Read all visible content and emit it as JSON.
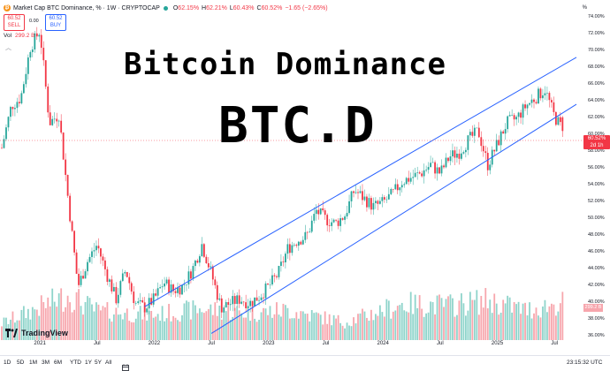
{
  "header": {
    "symbol_title": "Market Cap BTC Dominance, % · 1W · CRYPTOCAP",
    "logo_glyph": "₿",
    "ohlc": [
      {
        "k": "O",
        "v": "62.15%"
      },
      {
        "k": "H",
        "v": "62.21%"
      },
      {
        "k": "L",
        "v": "60.43%"
      },
      {
        "k": "C",
        "v": "60.52%"
      },
      {
        "k": "",
        "v": "−1.65 (−2.65%)"
      }
    ],
    "sell_price": "60.52",
    "sell_label": "SELL",
    "buy_price": "60.52",
    "buy_label": "BUY",
    "spread": "0.00",
    "volume_label": "Vol",
    "volume_value": "299.2 B",
    "collapse_glyph": "︿"
  },
  "overlay": {
    "title_line1": "Bitcoin Dominance",
    "title_line2": "BTC.D"
  },
  "price_axis": {
    "unit_label": "%",
    "ticks": [
      "74.00%",
      "72.00%",
      "70.00%",
      "68.00%",
      "66.00%",
      "64.00%",
      "62.00%",
      "60.00%",
      "58.00%",
      "56.00%",
      "54.00%",
      "52.00%",
      "50.00%",
      "48.00%",
      "46.00%",
      "44.00%",
      "42.00%",
      "40.00%",
      "38.00%",
      "36.00%"
    ],
    "current_price": "60.52%",
    "countdown": "2d 1h",
    "volume_tag": "299.2 B"
  },
  "time_axis": {
    "labels": [
      "2021",
      "Jul",
      "2022",
      "Jul",
      "2023",
      "Jul",
      "2024",
      "Jul",
      "2025",
      "Jul"
    ]
  },
  "branding": {
    "logo_text": "TradingView"
  },
  "bottom_bar": {
    "timeframes": [
      "1D",
      "5D",
      "1M",
      "3M",
      "6M",
      "YTD",
      "1Y",
      "5Y",
      "All"
    ],
    "clock": "23:15:32 UTC"
  },
  "colors": {
    "up": "#26a69a",
    "down": "#f23645",
    "channel": "#2962ff",
    "up_volume": "#8fd4cb",
    "down_volume": "#f7a6ad",
    "brand": "#f7931a"
  },
  "chart_data": {
    "type": "candlestick",
    "timeframe": "1W",
    "y_unit": "%",
    "y_range": [
      35.5,
      75.5
    ],
    "x_range": [
      "2020-09",
      "2025-08"
    ],
    "weekly_close_path": [
      {
        "date": "2020-09",
        "value": 58.5
      },
      {
        "date": "2020-10",
        "value": 63.5
      },
      {
        "date": "2020-11",
        "value": 64.5
      },
      {
        "date": "2020-12",
        "value": 70.5
      },
      {
        "date": "2021-01",
        "value": 72.5
      },
      {
        "date": "2021-02",
        "value": 61.5
      },
      {
        "date": "2021-03",
        "value": 62.5
      },
      {
        "date": "2021-04",
        "value": 52.0
      },
      {
        "date": "2021-05",
        "value": 42.0
      },
      {
        "date": "2021-06",
        "value": 45.0
      },
      {
        "date": "2021-07",
        "value": 47.0
      },
      {
        "date": "2021-08",
        "value": 43.5
      },
      {
        "date": "2021-09",
        "value": 40.5
      },
      {
        "date": "2021-10",
        "value": 44.0
      },
      {
        "date": "2021-11",
        "value": 40.0
      },
      {
        "date": "2021-12",
        "value": 39.5
      },
      {
        "date": "2022-01",
        "value": 40.5
      },
      {
        "date": "2022-02",
        "value": 42.5
      },
      {
        "date": "2022-03",
        "value": 41.5
      },
      {
        "date": "2022-04",
        "value": 42.0
      },
      {
        "date": "2022-05",
        "value": 44.0
      },
      {
        "date": "2022-06",
        "value": 47.0
      },
      {
        "date": "2022-07",
        "value": 43.5
      },
      {
        "date": "2022-08",
        "value": 39.5
      },
      {
        "date": "2022-09",
        "value": 40.0
      },
      {
        "date": "2022-10",
        "value": 40.5
      },
      {
        "date": "2022-11",
        "value": 40.0
      },
      {
        "date": "2022-12",
        "value": 40.8
      },
      {
        "date": "2023-01",
        "value": 42.0
      },
      {
        "date": "2023-02",
        "value": 43.5
      },
      {
        "date": "2023-03",
        "value": 46.5
      },
      {
        "date": "2023-04",
        "value": 47.5
      },
      {
        "date": "2023-05",
        "value": 48.0
      },
      {
        "date": "2023-06",
        "value": 51.0
      },
      {
        "date": "2023-07",
        "value": 50.0
      },
      {
        "date": "2023-08",
        "value": 49.5
      },
      {
        "date": "2023-09",
        "value": 50.5
      },
      {
        "date": "2023-10",
        "value": 53.5
      },
      {
        "date": "2023-11",
        "value": 52.5
      },
      {
        "date": "2023-12",
        "value": 51.5
      },
      {
        "date": "2024-01",
        "value": 52.0
      },
      {
        "date": "2024-02",
        "value": 53.0
      },
      {
        "date": "2024-03",
        "value": 54.5
      },
      {
        "date": "2024-04",
        "value": 55.0
      },
      {
        "date": "2024-05",
        "value": 55.5
      },
      {
        "date": "2024-06",
        "value": 56.5
      },
      {
        "date": "2024-07",
        "value": 55.5
      },
      {
        "date": "2024-08",
        "value": 57.5
      },
      {
        "date": "2024-09",
        "value": 58.0
      },
      {
        "date": "2024-10",
        "value": 59.5
      },
      {
        "date": "2024-11",
        "value": 60.5
      },
      {
        "date": "2024-12",
        "value": 56.5
      },
      {
        "date": "2025-01",
        "value": 59.0
      },
      {
        "date": "2025-02",
        "value": 61.5
      },
      {
        "date": "2025-03",
        "value": 62.0
      },
      {
        "date": "2025-04",
        "value": 63.5
      },
      {
        "date": "2025-05",
        "value": 64.5
      },
      {
        "date": "2025-06",
        "value": 65.5
      },
      {
        "date": "2025-07",
        "value": 62.2
      },
      {
        "date": "2025-08",
        "value": 60.52
      }
    ],
    "last_candle": {
      "open": 62.15,
      "high": 62.21,
      "low": 60.43,
      "close": 60.52
    },
    "channel_lines": [
      {
        "name": "upper",
        "from": {
          "date": "2021-12",
          "value": 39.6
        },
        "to": {
          "date": "2025-08",
          "value": 68.7
        }
      },
      {
        "name": "lower",
        "from": {
          "date": "2022-07",
          "value": 36.4
        },
        "to": {
          "date": "2025-08",
          "value": 63.1
        }
      }
    ],
    "volume": {
      "unit": "B",
      "latest": 299.2,
      "relative_weekly_profile": [
        {
          "date": "2020-09",
          "value": 0.28
        },
        {
          "date": "2021-01",
          "value": 0.55
        },
        {
          "date": "2021-04",
          "value": 0.75
        },
        {
          "date": "2021-07",
          "value": 0.48
        },
        {
          "date": "2022-01",
          "value": 0.42
        },
        {
          "date": "2022-06",
          "value": 0.52
        },
        {
          "date": "2022-11",
          "value": 0.45
        },
        {
          "date": "2023-03",
          "value": 0.5
        },
        {
          "date": "2023-09",
          "value": 0.3
        },
        {
          "date": "2024-03",
          "value": 0.6
        },
        {
          "date": "2024-08",
          "value": 0.58
        },
        {
          "date": "2024-12",
          "value": 0.66
        },
        {
          "date": "2025-04",
          "value": 0.5
        },
        {
          "date": "2025-08",
          "value": 0.62
        }
      ]
    },
    "grid": false,
    "log_scale": false
  }
}
